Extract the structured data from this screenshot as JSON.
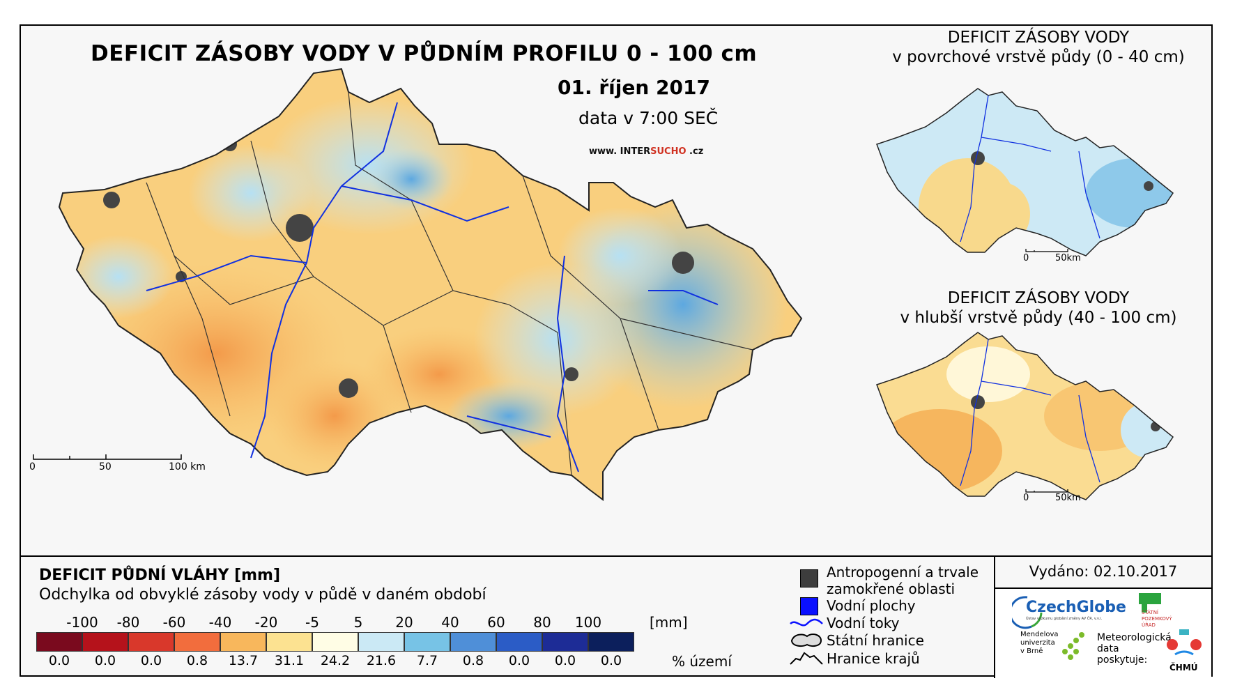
{
  "main_map": {
    "title": "DEFICIT ZÁSOBY VODY V PŮDNÍM PROFILU 0 - 100 cm",
    "date": "01. říjen 2017",
    "time": "data v 7:00 SEČ",
    "website": {
      "prefix": "www. INTER",
      "brand": "SUCHO",
      "suffix": " .cz"
    },
    "scale_labels": [
      "0",
      "50",
      "100 km"
    ]
  },
  "inset_top": {
    "title_line1": "DEFICIT ZÁSOBY VODY",
    "title_line2": "v povrchové vrstvě půdy (0 - 40 cm)",
    "scale_labels": [
      "0",
      "50km"
    ]
  },
  "inset_bottom": {
    "title_line1": "DEFICIT ZÁSOBY VODY",
    "title_line2": "v hlubší vrstvě půdy (40 - 100 cm)",
    "scale_labels": [
      "0",
      "50km"
    ]
  },
  "legend": {
    "title": "DEFICIT PŮDNÍ VLÁHY [mm]",
    "subtitle": "Odchylka od obvyklé zásoby vody v půdě v daném období",
    "ticks": [
      "-100",
      "-80",
      "-60",
      "-40",
      "-20",
      "-5",
      "5",
      "20",
      "40",
      "60",
      "80",
      "100"
    ],
    "unit": "[mm]",
    "colors": [
      "#7a0a1e",
      "#b5121b",
      "#d9382b",
      "#f26d3d",
      "#f8b75c",
      "#fce291",
      "#fffde5",
      "#cbe9f5",
      "#77c3e6",
      "#4f8fd8",
      "#2b5cc6",
      "#1d2c96",
      "#0c1f5c"
    ],
    "percentages": [
      "0.0",
      "0.0",
      "0.0",
      "0.8",
      "13.7",
      "31.1",
      "24.2",
      "21.6",
      "7.7",
      "0.8",
      "0.0",
      "0.0",
      "0.0"
    ],
    "percent_unit": "% území"
  },
  "symbols": [
    {
      "label": "Antropogenní a trvale",
      "label2": "zamokřené oblasti",
      "icon": "dark-square-icon"
    },
    {
      "label": "Vodní plochy",
      "icon": "blue-square-icon"
    },
    {
      "label": "Vodní toky",
      "icon": "river-line-icon"
    },
    {
      "label": "Státní hranice",
      "icon": "state-border-icon"
    },
    {
      "label": "Hranice krajů",
      "icon": "region-border-icon"
    }
  ],
  "issued": "Vydáno: 02.10.2017",
  "logos": {
    "czechglobe": "CzechGlobe",
    "czechglobe_sub": "Ústav výzkumu globální změny AV ČR, v.v.i.",
    "spu_lines": [
      "STÁTNÍ",
      "POZEMKOVÝ",
      "ÚŘAD"
    ],
    "mendelu_lines": [
      "Mendelova",
      "univerzita",
      "v Brně"
    ],
    "meteo_lines": [
      "Meteorologická",
      "data",
      "poskytuje:"
    ],
    "chmu": "ČHMÚ"
  }
}
